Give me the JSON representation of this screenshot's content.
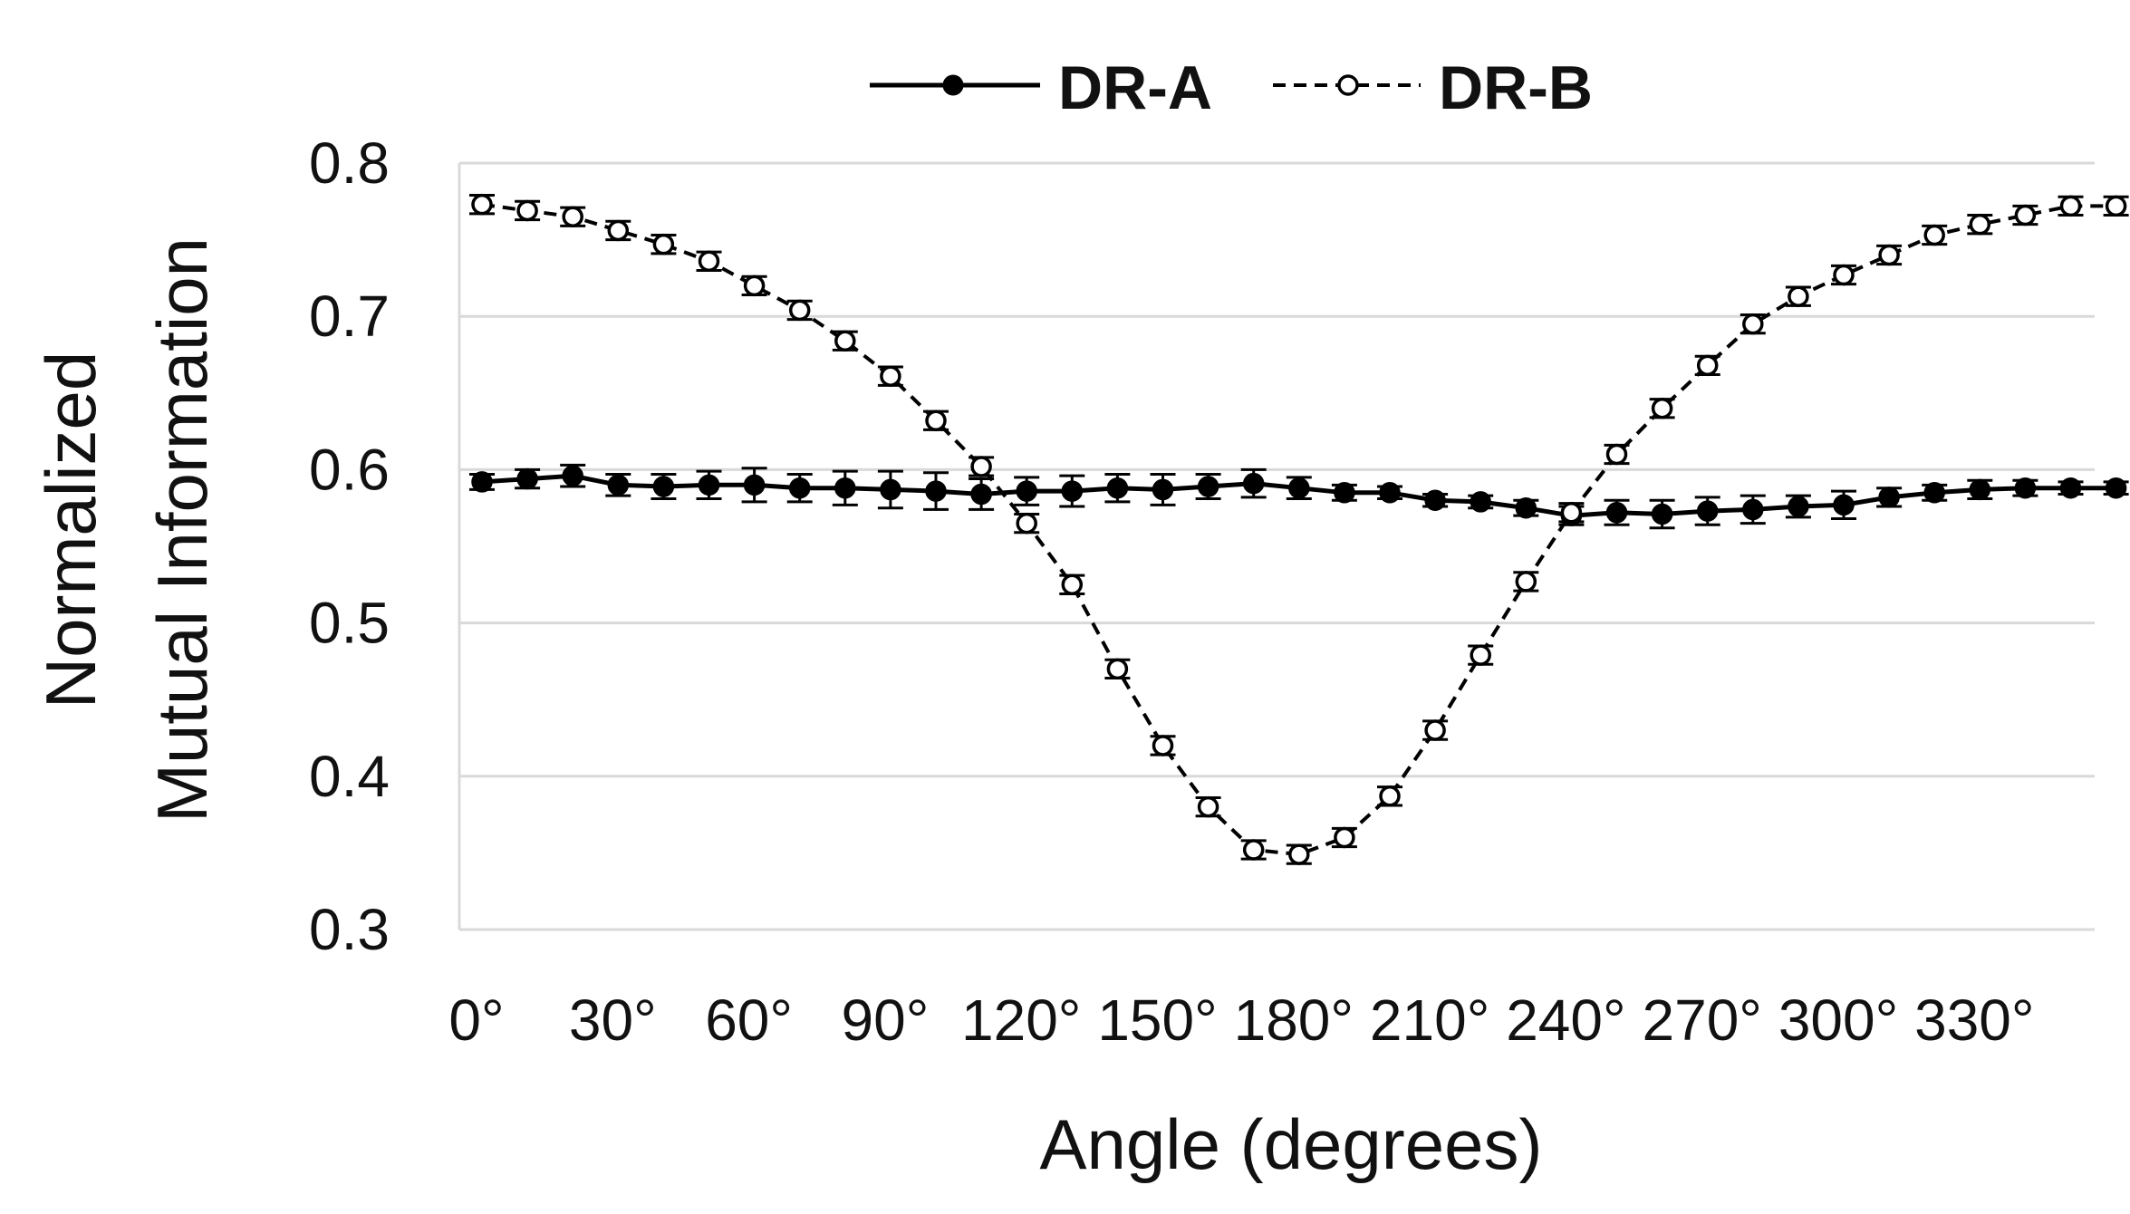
{
  "chart_data": {
    "type": "line",
    "title": "",
    "xlabel": "Angle (degrees)",
    "ylabel_lines": [
      "Normalized",
      "Mutual Information"
    ],
    "ylim": [
      0.3,
      0.8
    ],
    "yticks": [
      0.3,
      0.4,
      0.5,
      0.6,
      0.7,
      0.8
    ],
    "ytick_labels": [
      "0.3",
      "0.4",
      "0.5",
      "0.6",
      "0.7",
      "0.8"
    ],
    "xlim": [
      0,
      350
    ],
    "xticks": [
      0,
      30,
      60,
      90,
      120,
      150,
      180,
      210,
      240,
      270,
      300,
      330
    ],
    "xtick_labels": [
      "0°",
      "30°",
      "60°",
      "90°",
      "120°",
      "150°",
      "180°",
      "210°",
      "240°",
      "270°",
      "300°",
      "330°"
    ],
    "grid": true,
    "legend_position": "top-center",
    "x": [
      0,
      10,
      20,
      30,
      40,
      50,
      60,
      70,
      80,
      90,
      100,
      110,
      120,
      130,
      140,
      150,
      160,
      170,
      180,
      190,
      200,
      210,
      220,
      230,
      240,
      250,
      260,
      270,
      280,
      290,
      300,
      310,
      320,
      330,
      340,
      350,
      360
    ],
    "series": [
      {
        "name": "DR-A",
        "style": "solid",
        "marker": "filled",
        "values": [
          0.592,
          0.594,
          0.596,
          0.59,
          0.589,
          0.59,
          0.59,
          0.588,
          0.588,
          0.587,
          0.586,
          0.584,
          0.586,
          0.586,
          0.588,
          0.587,
          0.589,
          0.591,
          0.588,
          0.585,
          0.585,
          0.58,
          0.579,
          0.575,
          0.57,
          0.572,
          0.571,
          0.573,
          0.574,
          0.576,
          0.577,
          0.582,
          0.585,
          0.587,
          0.588,
          0.588,
          0.588
        ],
        "errors": [
          0.005,
          0.006,
          0.007,
          0.007,
          0.008,
          0.009,
          0.011,
          0.009,
          0.011,
          0.012,
          0.012,
          0.01,
          0.009,
          0.01,
          0.009,
          0.01,
          0.008,
          0.009,
          0.007,
          0.005,
          0.004,
          0.004,
          0.004,
          0.005,
          0.006,
          0.008,
          0.009,
          0.009,
          0.009,
          0.007,
          0.009,
          0.006,
          0.005,
          0.006,
          0.005,
          0.004,
          0.004
        ]
      },
      {
        "name": "DR-B",
        "style": "dashed",
        "marker": "open",
        "values": [
          0.773,
          0.769,
          0.765,
          0.756,
          0.747,
          0.736,
          0.72,
          0.704,
          0.684,
          0.661,
          0.632,
          0.602,
          0.565,
          0.525,
          0.47,
          0.42,
          0.38,
          0.352,
          0.349,
          0.36,
          0.387,
          0.43,
          0.479,
          0.527,
          0.572,
          0.61,
          0.64,
          0.668,
          0.695,
          0.713,
          0.727,
          0.74,
          0.753,
          0.76,
          0.766,
          0.772,
          0.772
        ]
      }
    ]
  }
}
